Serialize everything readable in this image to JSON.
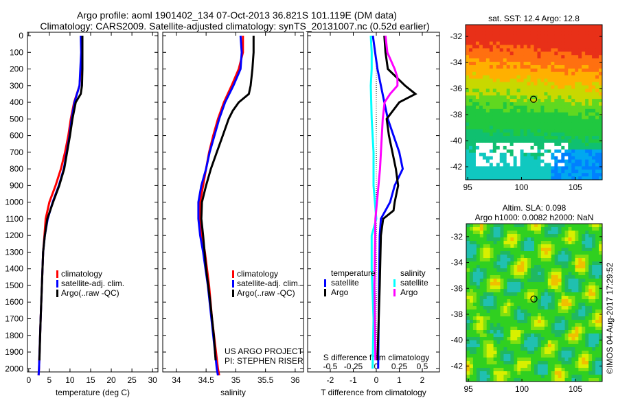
{
  "title_line1": "Argo profile: aoml 1901402_134 07-Oct-2013 36.821S 101.119E (DM data)",
  "title_line2": "Climatology: CARS2009. Satellite-adjusted climatology: synTS_20131007.nc (0.52d earlier)",
  "depth_ticks": [
    0,
    100,
    200,
    300,
    400,
    500,
    600,
    700,
    800,
    900,
    1000,
    1100,
    1200,
    1300,
    1400,
    1500,
    1600,
    1700,
    1800,
    1900,
    2000
  ],
  "colors": {
    "climatology": "#ff0000",
    "satellite": "#0000ff",
    "argo": "#000000",
    "sal_sat": "#00ffff",
    "sal_argo": "#ff00ff"
  },
  "chart_data": [
    {
      "type": "line",
      "xlabel": "temperature (deg C)",
      "xticks": [
        0,
        5,
        10,
        15,
        20,
        25,
        30
      ],
      "xlim": [
        -0.3,
        31.3
      ],
      "ylim": [
        0,
        2040
      ],
      "legend": [
        "climatology",
        "satellite-adj. clim.",
        "Argo(..raw -QC)"
      ],
      "series": [
        {
          "name": "climatology",
          "depth": [
            0,
            100,
            200,
            300,
            400,
            500,
            600,
            700,
            800,
            900,
            1000,
            1100,
            1200,
            1300,
            1500,
            1700,
            2000,
            2040
          ],
          "values": [
            12.8,
            12.8,
            12.6,
            12.3,
            11.0,
            10.2,
            9.6,
            8.8,
            7.8,
            6.5,
            5.0,
            4.1,
            3.8,
            3.5,
            3.2,
            2.9,
            2.5,
            2.4
          ]
        },
        {
          "name": "satellite-adj. clim.",
          "depth": [
            0,
            100,
            200,
            300,
            400,
            500,
            600,
            700,
            800,
            900,
            1000,
            1100,
            1200,
            1300,
            1500,
            1700,
            2000,
            2040
          ],
          "values": [
            12.6,
            12.7,
            12.5,
            12.3,
            11.1,
            10.4,
            9.9,
            9.2,
            8.5,
            7.3,
            5.8,
            4.6,
            3.9,
            3.5,
            3.2,
            2.9,
            2.5,
            2.4
          ]
        },
        {
          "name": "Argo(..raw -QC)",
          "depth": [
            0,
            100,
            200,
            300,
            350,
            400,
            500,
            600,
            700,
            800,
            900,
            1000,
            1100,
            1200,
            1300,
            1500,
            1700,
            1950
          ],
          "values": [
            13.0,
            13.0,
            13.0,
            12.9,
            12.6,
            11.4,
            10.6,
            10.0,
            9.3,
            8.6,
            7.4,
            5.9,
            4.5,
            3.9,
            3.5,
            3.2,
            2.9,
            2.6
          ]
        }
      ]
    },
    {
      "type": "line",
      "xlabel": "salinity",
      "xticks": [
        34,
        34.5,
        35,
        35.5,
        36
      ],
      "xlim": [
        33.77,
        36.14
      ],
      "ylim": [
        0,
        2040
      ],
      "legend": [
        "climatology",
        "satellite-adj. clim.",
        "Argo(..raw -QC)"
      ],
      "annotation": [
        "US ARGO PROJECT",
        "PI: STEPHEN RISER"
      ],
      "series": [
        {
          "name": "climatology",
          "depth": [
            0,
            100,
            200,
            300,
            400,
            500,
            600,
            700,
            800,
            900,
            1000,
            1100,
            1200,
            1300,
            1500,
            1700,
            2000,
            2040
          ],
          "values": [
            35.12,
            35.12,
            35.05,
            34.93,
            34.8,
            34.7,
            34.62,
            34.55,
            34.5,
            34.45,
            34.4,
            34.4,
            34.43,
            34.48,
            34.55,
            34.6,
            34.7,
            34.72
          ]
        },
        {
          "name": "satellite-adj. clim.",
          "depth": [
            0,
            100,
            200,
            300,
            400,
            500,
            600,
            700,
            800,
            900,
            1000,
            1100,
            1200,
            1300,
            1500,
            1700,
            2000,
            2040
          ],
          "values": [
            35.08,
            35.1,
            35.08,
            34.96,
            34.82,
            34.72,
            34.64,
            34.56,
            34.5,
            34.42,
            34.37,
            34.37,
            34.4,
            34.45,
            34.53,
            34.59,
            34.68,
            34.7
          ]
        },
        {
          "name": "Argo(..raw -QC)",
          "depth": [
            0,
            100,
            200,
            300,
            350,
            400,
            450,
            500,
            600,
            700,
            800,
            900,
            1000,
            1100,
            1200,
            1400,
            1600,
            1800,
            1950
          ],
          "values": [
            35.3,
            35.3,
            35.28,
            35.25,
            35.22,
            35.05,
            34.95,
            34.88,
            34.78,
            34.68,
            34.58,
            34.5,
            34.43,
            34.42,
            34.45,
            34.5,
            34.57,
            34.63,
            34.66
          ]
        }
      ]
    },
    {
      "type": "line",
      "xlabel": "T difference from climatology",
      "xlabel_top": "S difference from climatology",
      "xticks": [
        -2,
        -1,
        0,
        1,
        2
      ],
      "xticks_s": [
        -0.5,
        -0.25,
        0,
        0.25,
        0.5
      ],
      "xlim": [
        -3,
        2.8
      ],
      "ylim": [
        0,
        2040
      ],
      "legend_temperature": {
        "title": "temperature",
        "items": [
          "satellite",
          "Argo"
        ]
      },
      "legend_salinity": {
        "title": "salinity",
        "items": [
          "satellite",
          "Argo"
        ]
      },
      "series": [
        {
          "name": "temperature satellite",
          "unit": "T",
          "depth": [
            0,
            100,
            200,
            300,
            400,
            500,
            600,
            700,
            800,
            900,
            1000,
            1100,
            1200,
            1500,
            2000
          ],
          "values": [
            -0.15,
            -0.05,
            0.05,
            0.2,
            0.35,
            0.5,
            0.75,
            1.0,
            1.15,
            0.8,
            0.6,
            0.2,
            0.15,
            0.12,
            0.08
          ]
        },
        {
          "name": "temperature Argo",
          "unit": "T",
          "depth": [
            0,
            100,
            200,
            300,
            350,
            400,
            500,
            600,
            700,
            800,
            900,
            1000,
            1050,
            1100,
            1200,
            1500,
            1950
          ],
          "values": [
            0.35,
            0.4,
            0.5,
            1.25,
            1.7,
            1.0,
            0.45,
            0.55,
            0.7,
            0.85,
            0.95,
            0.8,
            0.75,
            0.3,
            0.2,
            0.15,
            0.05
          ]
        },
        {
          "name": "salinity satellite",
          "unit": "S",
          "depth": [
            0,
            100,
            200,
            300,
            500,
            700,
            900,
            1100,
            1200,
            1400,
            1700,
            2000
          ],
          "values": [
            -0.06,
            -0.05,
            -0.05,
            -0.06,
            -0.05,
            -0.03,
            -0.03,
            0.0,
            -0.05,
            -0.05,
            -0.03,
            -0.04
          ]
        },
        {
          "name": "salinity Argo",
          "unit": "S",
          "depth": [
            0,
            100,
            200,
            250,
            300,
            350,
            400,
            500,
            800,
            1100,
            1500,
            1950
          ],
          "values": [
            0.1,
            0.12,
            0.2,
            0.23,
            0.23,
            0.15,
            0.09,
            0.07,
            0.04,
            -0.01,
            -0.02,
            -0.01
          ]
        }
      ]
    }
  ],
  "map_sst": {
    "title": "sat. SST: 12.4 Argo: 12.8",
    "xticks": [
      95,
      100,
      105
    ],
    "yticks": [
      -32,
      -34,
      -36,
      -38,
      -40,
      -42
    ],
    "lon_range": [
      94.8,
      107.5
    ],
    "lat_range": [
      -31.1,
      -43
    ]
  },
  "map_sla": {
    "title1": "Altim. SLA: 0.098",
    "title2": "Argo h1000: 0.0082 h2000: NaN",
    "xticks": [
      95,
      100,
      105
    ],
    "yticks": [
      -32,
      -34,
      -36,
      -38,
      -40,
      -42
    ],
    "lon_range": [
      94.8,
      107.5
    ],
    "lat_range": [
      -31,
      -43.2
    ]
  },
  "float_position": {
    "lon": 101.119,
    "lat": -36.821
  },
  "credit": "©IMOS 04-Aug-2017 17:29:52"
}
